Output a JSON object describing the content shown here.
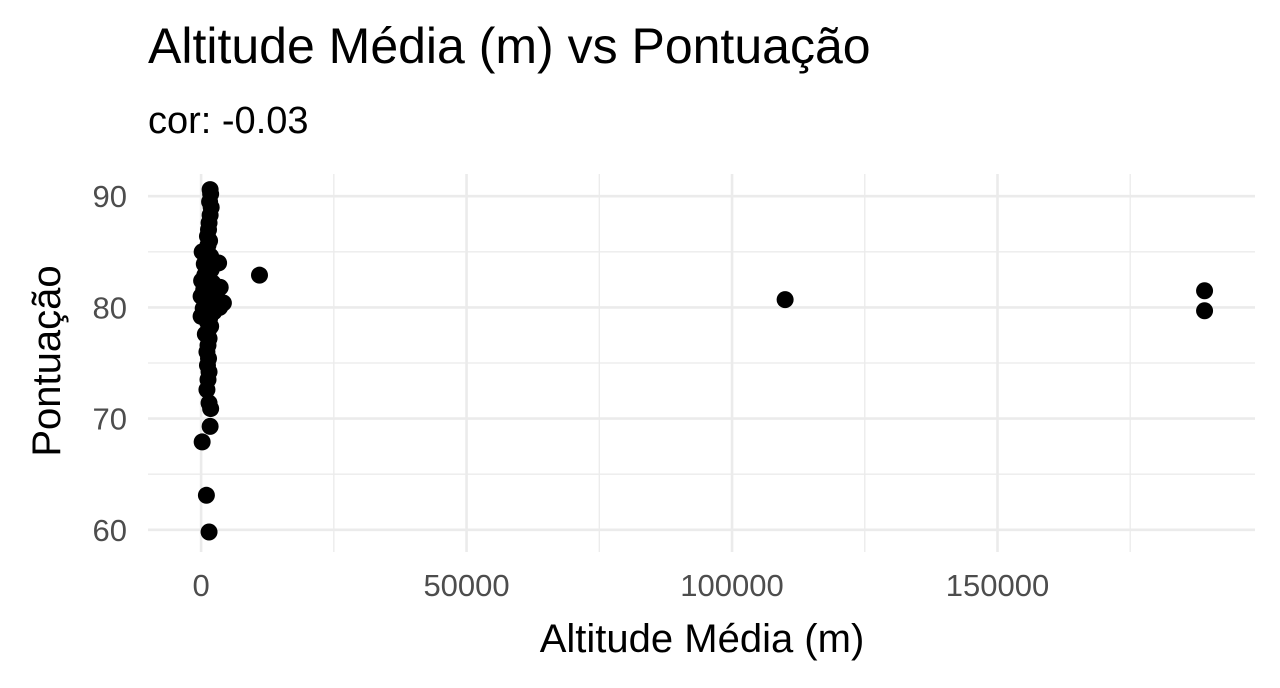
{
  "chart_data": {
    "type": "scatter",
    "title": "Altitude Média (m) vs Pontuação",
    "subtitle": "cor: -0.03",
    "xlabel": "Altitude Média (m)",
    "ylabel": "Pontuação",
    "xlim": [
      -10000,
      198500
    ],
    "ylim": [
      58,
      92
    ],
    "x_ticks": [
      0,
      50000,
      100000,
      150000
    ],
    "x_tick_labels": [
      "0",
      "50000",
      "100000",
      "150000"
    ],
    "y_ticks": [
      60,
      70,
      80,
      90
    ],
    "y_tick_labels": [
      "60",
      "70",
      "80",
      "90"
    ],
    "grid": true,
    "legend": "none",
    "point_color": "#000000",
    "points": [
      [
        1700,
        90.6
      ],
      [
        1800,
        90.2
      ],
      [
        1600,
        89.5
      ],
      [
        1900,
        89.0
      ],
      [
        1700,
        88.3
      ],
      [
        1500,
        87.6
      ],
      [
        1400,
        87.0
      ],
      [
        1200,
        86.4
      ],
      [
        1600,
        86.0
      ],
      [
        1300,
        85.6
      ],
      [
        200,
        85.0
      ],
      [
        900,
        84.8
      ],
      [
        1800,
        84.6
      ],
      [
        1200,
        84.3
      ],
      [
        3300,
        84.0
      ],
      [
        600,
        83.9
      ],
      [
        1000,
        83.6
      ],
      [
        1900,
        83.4
      ],
      [
        1400,
        83.1
      ],
      [
        700,
        82.9
      ],
      [
        1100,
        82.7
      ],
      [
        1600,
        82.5
      ],
      [
        100,
        82.4
      ],
      [
        2200,
        82.2
      ],
      [
        800,
        82.1
      ],
      [
        1300,
        81.9
      ],
      [
        3600,
        81.8
      ],
      [
        500,
        81.6
      ],
      [
        2600,
        81.5
      ],
      [
        1000,
        81.3
      ],
      [
        1800,
        81.2
      ],
      [
        0,
        81.0
      ],
      [
        1400,
        80.9
      ],
      [
        3000,
        80.8
      ],
      [
        700,
        80.6
      ],
      [
        2200,
        80.5
      ],
      [
        4200,
        80.4
      ],
      [
        1100,
        80.3
      ],
      [
        1700,
        80.1
      ],
      [
        3500,
        80.0
      ],
      [
        400,
        79.9
      ],
      [
        1300,
        79.7
      ],
      [
        2400,
        79.6
      ],
      [
        900,
        79.4
      ],
      [
        0,
        79.2
      ],
      [
        1600,
        79.0
      ],
      [
        1200,
        78.7
      ],
      [
        1800,
        78.3
      ],
      [
        1400,
        78.0
      ],
      [
        800,
        77.6
      ],
      [
        1500,
        77.2
      ],
      [
        1300,
        76.6
      ],
      [
        1100,
        76.0
      ],
      [
        1400,
        75.4
      ],
      [
        1200,
        74.8
      ],
      [
        1500,
        74.2
      ],
      [
        1300,
        73.5
      ],
      [
        1100,
        72.6
      ],
      [
        1500,
        71.4
      ],
      [
        1800,
        70.9
      ],
      [
        1700,
        69.3
      ],
      [
        200,
        67.9
      ],
      [
        1000,
        63.1
      ],
      [
        1500,
        59.8
      ],
      [
        11000,
        82.9
      ],
      [
        110000,
        80.7
      ],
      [
        189000,
        81.5
      ],
      [
        189000,
        79.7
      ]
    ]
  }
}
